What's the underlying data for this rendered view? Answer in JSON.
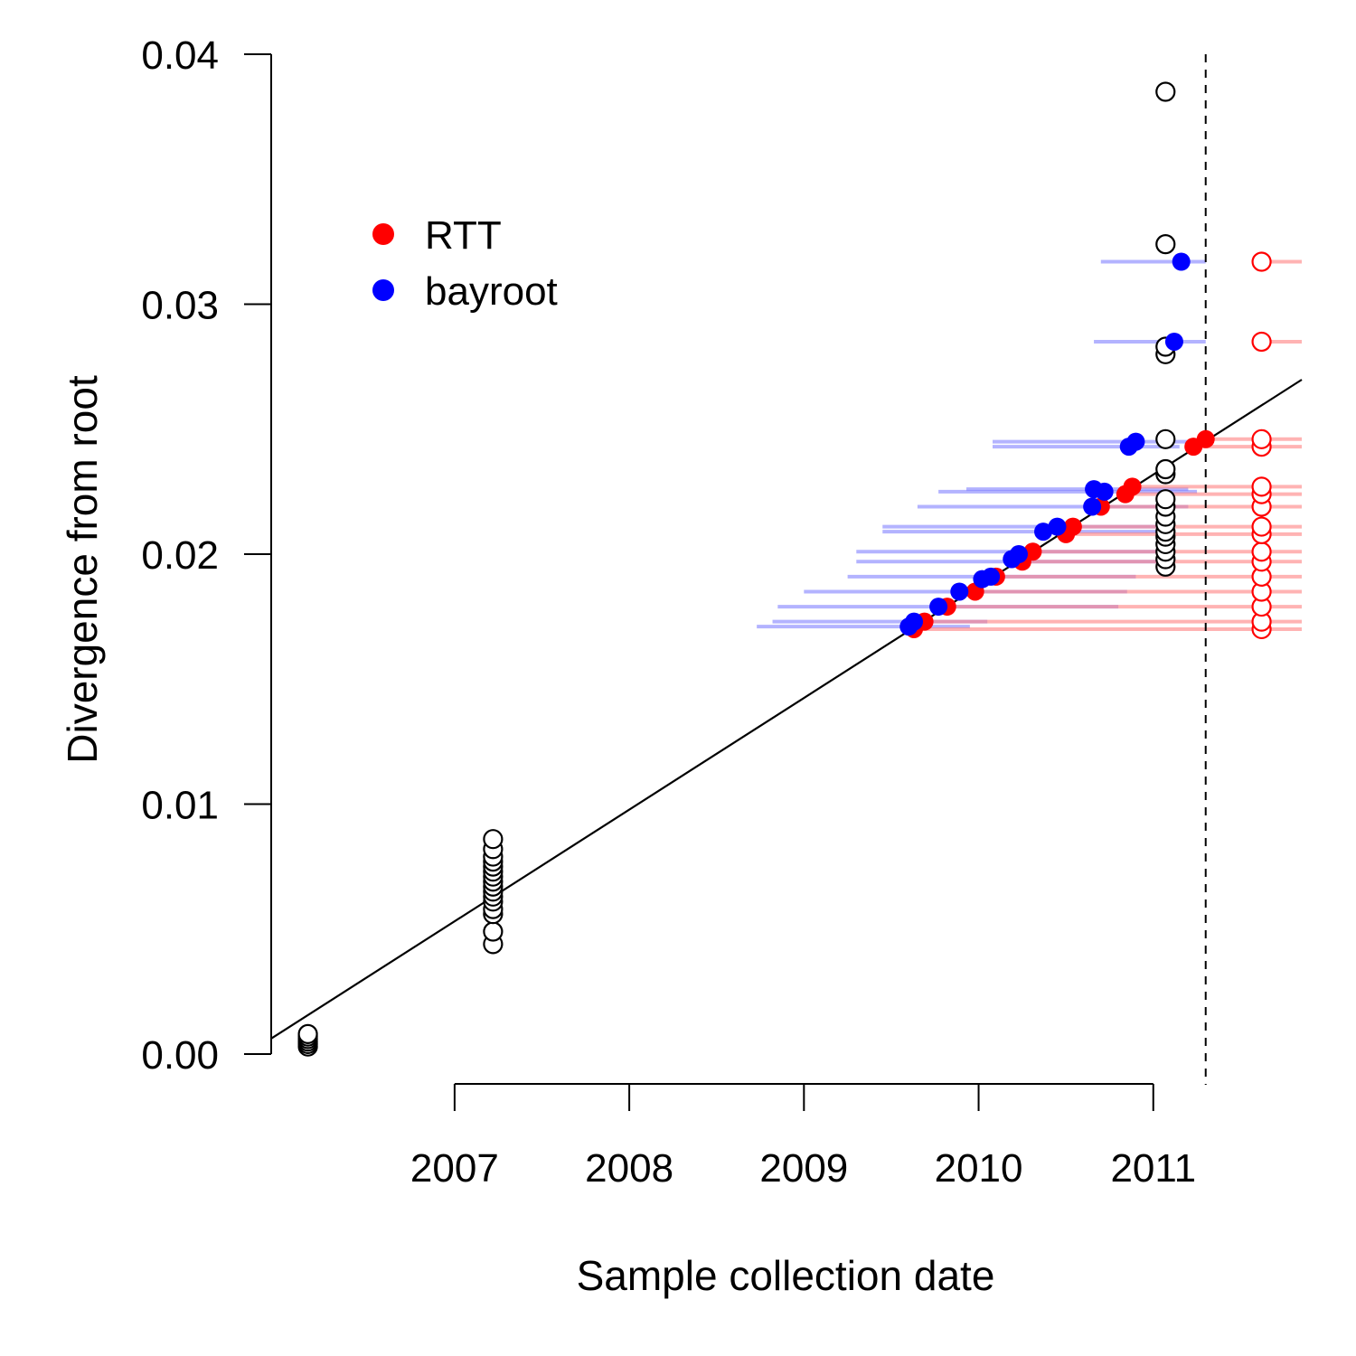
{
  "chart_data": {
    "type": "scatter",
    "title": "",
    "xlabel": "Sample collection date",
    "ylabel": "Divergence from root",
    "xlim": [
      2005.95,
      2011.85
    ],
    "ylim": [
      0.0,
      0.04
    ],
    "x_ticks": [
      2007,
      2008,
      2009,
      2010,
      2011
    ],
    "x_tick_labels": [
      "2007",
      "2008",
      "2009",
      "2010",
      "2011"
    ],
    "y_ticks": [
      0.0,
      0.01,
      0.02,
      0.03,
      0.04
    ],
    "y_tick_labels": [
      "0.00",
      "0.01",
      "0.02",
      "0.03",
      "0.04"
    ],
    "grid": false,
    "legend": {
      "position": "top-left",
      "entries": [
        {
          "label": "RTT",
          "color": "#ff0000"
        },
        {
          "label": "bayroot",
          "color": "#0000ff"
        }
      ]
    },
    "colors": {
      "rtt": "#ff0000",
      "bayroot": "#0000ff",
      "observed": "#000000",
      "rtt_interval": "#ff8080",
      "bayroot_interval": "#8080ff"
    },
    "regression_line": {
      "x": [
        2005.95,
        2011.85
      ],
      "y": [
        0.00062,
        0.02698
      ]
    },
    "cutoff_date": 2011.3,
    "observed_samples": [
      {
        "x": 2006.16,
        "y": [
          0.0003,
          0.0004,
          0.0005,
          0.0006,
          0.0007,
          0.0008
        ]
      },
      {
        "x": 2007.22,
        "y": [
          0.0044,
          0.0049,
          0.0056,
          0.0058,
          0.0061,
          0.0063,
          0.0065,
          0.0067,
          0.0069,
          0.0071,
          0.0073,
          0.0075,
          0.0077,
          0.0079,
          0.0082,
          0.0086
        ]
      },
      {
        "x": 2011.07,
        "y": [
          0.0195,
          0.0198,
          0.0201,
          0.0204,
          0.0207,
          0.0209,
          0.0212,
          0.0215,
          0.0219,
          0.0222,
          0.0232,
          0.0234,
          0.0246,
          0.028,
          0.0283,
          0.0324,
          0.0385
        ]
      }
    ],
    "unsampled_rtt_projection": {
      "x": 2011.62,
      "y": [
        0.017,
        0.0173,
        0.0179,
        0.0185,
        0.0191,
        0.0197,
        0.0201,
        0.0208,
        0.0211,
        0.0219,
        0.0224,
        0.0227,
        0.0243,
        0.0246,
        0.0285,
        0.0317
      ]
    },
    "series": [
      {
        "name": "RTT",
        "x": [
          2009.63,
          2009.69,
          2009.82,
          2009.98,
          2010.1,
          2010.25,
          2010.31,
          2010.5,
          2010.54,
          2010.7,
          2010.84,
          2010.88,
          2011.23,
          2011.3
        ],
        "y": [
          0.017,
          0.0173,
          0.0179,
          0.0185,
          0.0191,
          0.0197,
          0.0201,
          0.0208,
          0.0211,
          0.0219,
          0.0224,
          0.0227,
          0.0243,
          0.0246
        ]
      },
      {
        "name": "bayroot",
        "x": [
          2009.6,
          2009.63,
          2009.77,
          2009.89,
          2010.02,
          2010.07,
          2010.19,
          2010.23,
          2010.37,
          2010.45,
          2010.65,
          2010.66,
          2010.72,
          2010.86,
          2010.9,
          2011.12,
          2011.16
        ],
        "y": [
          0.0171,
          0.0173,
          0.0179,
          0.0185,
          0.019,
          0.0191,
          0.0198,
          0.02,
          0.0209,
          0.0211,
          0.0219,
          0.0226,
          0.0225,
          0.0243,
          0.0245,
          0.0285,
          0.0317
        ]
      }
    ],
    "bayroot_intervals": [
      {
        "y": 0.0171,
        "lo": 2008.73,
        "hi": 2009.95
      },
      {
        "y": 0.0173,
        "lo": 2008.82,
        "hi": 2010.05
      },
      {
        "y": 0.0179,
        "lo": 2008.85,
        "hi": 2010.8
      },
      {
        "y": 0.0185,
        "lo": 2009.0,
        "hi": 2010.85
      },
      {
        "y": 0.0191,
        "lo": 2009.25,
        "hi": 2010.9
      },
      {
        "y": 0.0197,
        "lo": 2009.3,
        "hi": 2011.1
      },
      {
        "y": 0.0201,
        "lo": 2009.3,
        "hi": 2011.1
      },
      {
        "y": 0.0209,
        "lo": 2009.45,
        "hi": 2011.05
      },
      {
        "y": 0.0211,
        "lo": 2009.45,
        "hi": 2011.1
      },
      {
        "y": 0.0219,
        "lo": 2009.65,
        "hi": 2011.2
      },
      {
        "y": 0.0225,
        "lo": 2009.77,
        "hi": 2011.25
      },
      {
        "y": 0.0226,
        "lo": 2009.93,
        "hi": 2011.2
      },
      {
        "y": 0.0243,
        "lo": 2010.08,
        "hi": 2011.15
      },
      {
        "y": 0.0245,
        "lo": 2010.08,
        "hi": 2011.2
      },
      {
        "y": 0.0285,
        "lo": 2010.66,
        "hi": 2011.3
      },
      {
        "y": 0.0317,
        "lo": 2010.7,
        "hi": 2011.3
      }
    ],
    "rtt_intervals": [
      {
        "y": 0.017,
        "lo": 2009.6,
        "hi": 2011.85
      },
      {
        "y": 0.0173,
        "lo": 2009.7,
        "hi": 2011.85
      },
      {
        "y": 0.0179,
        "lo": 2009.8,
        "hi": 2011.85
      },
      {
        "y": 0.0185,
        "lo": 2009.95,
        "hi": 2011.85
      },
      {
        "y": 0.0191,
        "lo": 2010.1,
        "hi": 2011.85
      },
      {
        "y": 0.0197,
        "lo": 2010.2,
        "hi": 2011.85
      },
      {
        "y": 0.0201,
        "lo": 2010.3,
        "hi": 2011.85
      },
      {
        "y": 0.0208,
        "lo": 2010.45,
        "hi": 2011.85
      },
      {
        "y": 0.0211,
        "lo": 2010.5,
        "hi": 2011.85
      },
      {
        "y": 0.0219,
        "lo": 2010.68,
        "hi": 2011.85
      },
      {
        "y": 0.0224,
        "lo": 2010.8,
        "hi": 2011.85
      },
      {
        "y": 0.0227,
        "lo": 2010.85,
        "hi": 2011.85
      },
      {
        "y": 0.0243,
        "lo": 2011.2,
        "hi": 2011.85
      },
      {
        "y": 0.0246,
        "lo": 2011.28,
        "hi": 2011.85
      },
      {
        "y": 0.0285,
        "lo": 2011.62,
        "hi": 2011.85
      },
      {
        "y": 0.0317,
        "lo": 2011.62,
        "hi": 2011.85
      }
    ]
  }
}
